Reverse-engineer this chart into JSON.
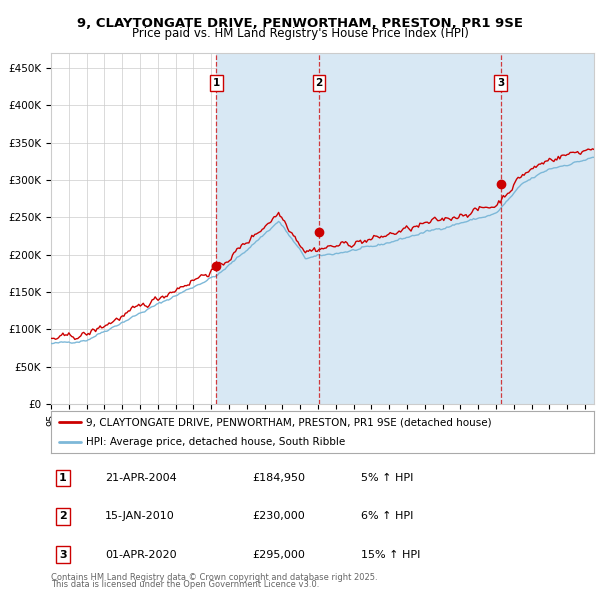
{
  "title1": "9, CLAYTONGATE DRIVE, PENWORTHAM, PRESTON, PR1 9SE",
  "title2": "Price paid vs. HM Land Registry's House Price Index (HPI)",
  "ylim": [
    0,
    470000
  ],
  "yticks": [
    0,
    50000,
    100000,
    150000,
    200000,
    250000,
    300000,
    350000,
    400000,
    450000
  ],
  "ytick_labels": [
    "£0",
    "£50K",
    "£100K",
    "£150K",
    "£200K",
    "£250K",
    "£300K",
    "£350K",
    "£400K",
    "£450K"
  ],
  "fig_bg": "#ffffff",
  "plot_bg": "#ffffff",
  "red_color": "#cc0000",
  "blue_color": "#7db8d8",
  "shade_color": "#d8e8f4",
  "grid_color": "#cccccc",
  "sale1_date": 2004.29,
  "sale1_price": 184950,
  "sale2_date": 2010.04,
  "sale2_price": 230000,
  "sale3_date": 2020.25,
  "sale3_price": 295000,
  "xmin": 1995.0,
  "xmax": 2025.5,
  "legend_red": "9, CLAYTONGATE DRIVE, PENWORTHAM, PRESTON, PR1 9SE (detached house)",
  "legend_blue": "HPI: Average price, detached house, South Ribble",
  "table_data": [
    {
      "num": "1",
      "date": "21-APR-2004",
      "price": "£184,950",
      "hpi": "5% ↑ HPI"
    },
    {
      "num": "2",
      "date": "15-JAN-2010",
      "price": "£230,000",
      "hpi": "6% ↑ HPI"
    },
    {
      "num": "3",
      "date": "01-APR-2020",
      "price": "£295,000",
      "hpi": "15% ↑ HPI"
    }
  ],
  "footnote1": "Contains HM Land Registry data © Crown copyright and database right 2025.",
  "footnote2": "This data is licensed under the Open Government Licence v3.0."
}
